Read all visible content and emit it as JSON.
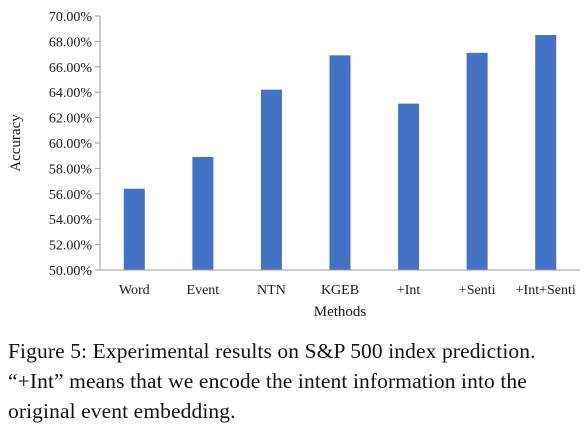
{
  "chart_data": {
    "type": "bar",
    "title": "",
    "xlabel": "Methods",
    "ylabel": "Accuracy",
    "categories": [
      "Word",
      "Event",
      "NTN",
      "KGEB",
      "+Int",
      "+Senti",
      "+Int+Senti"
    ],
    "values": [
      56.4,
      58.9,
      64.2,
      66.9,
      63.1,
      67.1,
      68.5
    ],
    "ylim": [
      50,
      70
    ],
    "yticks": [
      50,
      52,
      54,
      56,
      58,
      60,
      62,
      64,
      66,
      68,
      70
    ],
    "ytick_labels": [
      "50.00%",
      "52.00%",
      "54.00%",
      "56.00%",
      "58.00%",
      "60.00%",
      "62.00%",
      "64.00%",
      "66.00%",
      "68.00%",
      "70.00%"
    ],
    "bar_color": "#4472c4",
    "grid": false,
    "legend": "none"
  },
  "caption": {
    "text": "Figure 5: Experimental results on S&P 500 index prediction. “+Int” means that we encode the intent information into the original event embedding."
  }
}
